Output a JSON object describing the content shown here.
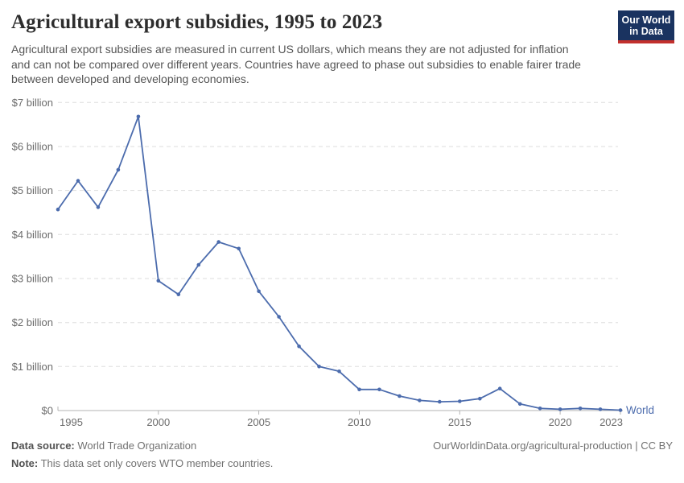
{
  "header": {
    "title": "Agricultural export subsidies, 1995 to 2023",
    "subtitle": "Agricultural export subsidies are measured in current US dollars, which means they are not adjusted for inflation and can not be compared over different years. Countries have agreed to phase out subsidies to enable fairer trade between developed and developing economies."
  },
  "logo": {
    "line1": "Our World",
    "line2": "in Data",
    "bg_color": "#1a3360",
    "accent_color": "#c2302d"
  },
  "chart_data": {
    "type": "line",
    "title": "Agricultural export subsidies, 1995 to 2023",
    "unit": "current US$ (billions)",
    "color": "#4c6cad",
    "grid": "horizontal-dashed",
    "legend_position": "end-of-line",
    "ylim": [
      0,
      7
    ],
    "ytick_labels": [
      "$0",
      "$1 billion",
      "$2 billion",
      "$3 billion",
      "$4 billion",
      "$5 billion",
      "$6 billion",
      "$7 billion"
    ],
    "xticks": [
      1995,
      2000,
      2005,
      2010,
      2015,
      2020,
      2023
    ],
    "x": [
      1995,
      1996,
      1997,
      1998,
      1999,
      2000,
      2001,
      2002,
      2003,
      2004,
      2005,
      2006,
      2007,
      2008,
      2009,
      2010,
      2011,
      2012,
      2013,
      2014,
      2015,
      2016,
      2017,
      2018,
      2019,
      2020,
      2021,
      2022,
      2023
    ],
    "series": [
      {
        "name": "World",
        "values": [
          4.57,
          5.22,
          4.62,
          5.47,
          6.68,
          2.95,
          2.64,
          3.31,
          3.83,
          3.68,
          2.71,
          2.13,
          1.46,
          1.0,
          0.89,
          0.48,
          0.48,
          0.33,
          0.23,
          0.2,
          0.21,
          0.27,
          0.5,
          0.15,
          0.05,
          0.03,
          0.05,
          0.03,
          0.01
        ]
      }
    ]
  },
  "footer": {
    "source_label": "Data source:",
    "source_value": "World Trade Organization",
    "attribution": "OurWorldinData.org/agricultural-production | CC BY",
    "note_label": "Note:",
    "note_value": "This data set only covers WTO member countries."
  }
}
